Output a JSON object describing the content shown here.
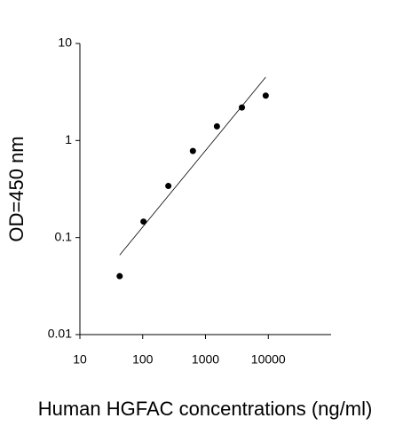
{
  "chart_data": {
    "type": "scatter",
    "x_label": "Human HGFAC concentrations (ng/ml)",
    "y_label": "OD=450 nm",
    "xlog": true,
    "ylog": true,
    "xlim": [
      10,
      100000
    ],
    "xticks": [
      10,
      100,
      1000,
      10000
    ],
    "ylim": [
      0.01,
      10
    ],
    "yticks": [
      0.01,
      0.1,
      1,
      10
    ],
    "series": [
      {
        "style": "markers",
        "color": "#000000",
        "x": [
          43,
          103,
          256,
          630,
          1520,
          3800,
          9100
        ],
        "values": [
          0.04,
          0.146,
          0.34,
          0.78,
          1.4,
          2.19,
          2.9
        ]
      },
      {
        "style": "line",
        "color": "#000000",
        "x": [
          43,
          9100
        ],
        "values": [
          0.066,
          4.5
        ]
      }
    ]
  }
}
